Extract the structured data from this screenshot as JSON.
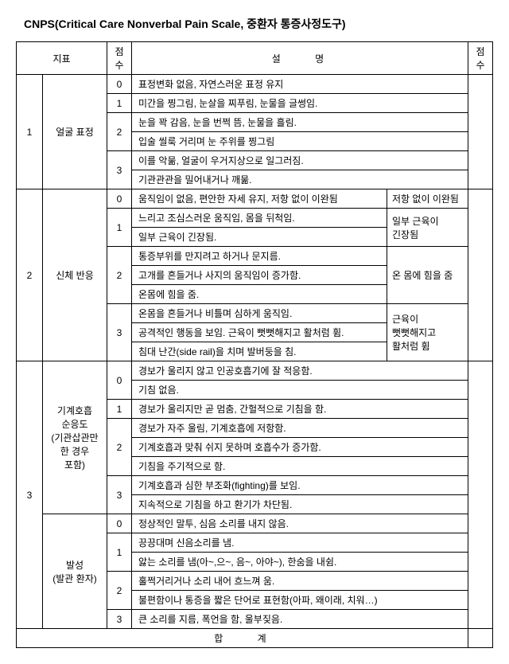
{
  "title": "CNPS(Critical Care Nonverbal Pain Scale, 중환자 통증사정도구)",
  "headers": {
    "indicator": "지표",
    "score": "점수",
    "description": "설   명",
    "score2": "점수"
  },
  "rows": {
    "r1": {
      "num": "1",
      "indicator": "얼굴 표정"
    },
    "r1_0": {
      "score": "0",
      "desc": "표정변화 없음, 자연스러운 표정 유지"
    },
    "r1_1": {
      "score": "1",
      "desc": "미간을 찡그림, 눈살을 찌푸림, 눈물을 글썽임."
    },
    "r1_2a": {
      "score": "2",
      "desc": "눈을 꽉 감음, 눈을 번쩍 뜸, 눈물을 흘림."
    },
    "r1_2b": {
      "desc": "입술 씰룩 거리며 눈 주위를 찡그림"
    },
    "r1_3a": {
      "score": "3",
      "desc": "이를 악묾, 얼굴이 우거지상으로 일그러짐."
    },
    "r1_3b": {
      "desc": "기관관관을 밀어내거나 깨묾."
    },
    "r2": {
      "num": "2",
      "indicator": "신체 반응"
    },
    "r2_0": {
      "score": "0",
      "desc": "움직임이 없음, 편안한 자세 유지, 저항 없이 이완됨",
      "right": "저항 없이 이완됨"
    },
    "r2_1a": {
      "score": "1",
      "desc": "느리고 조심스러운 움직임, 몸을 뒤척임.",
      "right": "일부 근육이"
    },
    "r2_1b": {
      "desc": "일부 근육이 긴장됨.",
      "right": "긴장됨"
    },
    "r2_2a": {
      "score": "2",
      "desc": "통증부위를 만지려고 하거나 문지름."
    },
    "r2_2b": {
      "desc": "고개를 흔들거나 사지의 움직임이 증가함.",
      "right": "온 몸에 힘을 줌"
    },
    "r2_2c": {
      "desc": "온몸에 힘을 줌."
    },
    "r2_3a": {
      "score": "3",
      "desc": "온몸을 흔들거나 비틀며 심하게 움직임.",
      "right": "근육이"
    },
    "r2_3b": {
      "desc": "공격적인 행동을 보임. 근육이 뻣뻣해지고 활처럼 휨.",
      "right": "뻣뻣해지고"
    },
    "r2_3c": {
      "desc": "침대 난간(side rail)을 치며 발버둥을 침.",
      "right": "활처럼 휨"
    },
    "r3": {
      "num": "3"
    },
    "r3a": {
      "indicator_l1": "기계호흡",
      "indicator_l2": "순응도",
      "indicator_l3": "(기관삽관만",
      "indicator_l4": "한 경우",
      "indicator_l5": "포함)"
    },
    "r3a_0a": {
      "score": "0",
      "desc": "경보가 울리지 않고 인공호흡기에 잘 적응함."
    },
    "r3a_0b": {
      "desc": "기침 없음."
    },
    "r3a_1": {
      "score": "1",
      "desc": "경보가 울리지만 곧 멈춤, 간헐적으로 기침을 함."
    },
    "r3a_2a": {
      "score": "2",
      "desc": "경보가 자주 울림, 기계호흡에 저항함."
    },
    "r3a_2b": {
      "desc": "기계호흡과 맞춰 쉬지 못하며 호흡수가 증가함."
    },
    "r3a_2c": {
      "desc": "기침을 주기적으로 함."
    },
    "r3a_3a": {
      "score": "3",
      "desc": "기계호흡과 심한 부조화(fighting)를 보임."
    },
    "r3a_3b": {
      "desc": "지속적으로 기침을 하고 환기가 차단됨."
    },
    "r3b": {
      "indicator_l1": "발성",
      "indicator_l2": "(발관 환자)"
    },
    "r3b_0": {
      "score": "0",
      "desc": "정상적인 말투, 심음 소리를 내지 않음."
    },
    "r3b_1a": {
      "score": "1",
      "desc": "끙끙대며 신음소리를 냄."
    },
    "r3b_1b": {
      "desc": "앓는 소리를 냄(아~,으~, 음~, 아야~), 한숨을 내쉼."
    },
    "r3b_2a": {
      "score": "2",
      "desc": "훌쩍거리거나 소리 내어 흐느껴 움."
    },
    "r3b_2b": {
      "desc": "불편함이나 통증을 짧은 단어로 표현함(아파, 왜이래, 치워…)"
    },
    "r3b_3": {
      "score": "3",
      "desc": "큰 소리를 지름, 폭언을 함, 울부짖음."
    }
  },
  "total": "합   계"
}
